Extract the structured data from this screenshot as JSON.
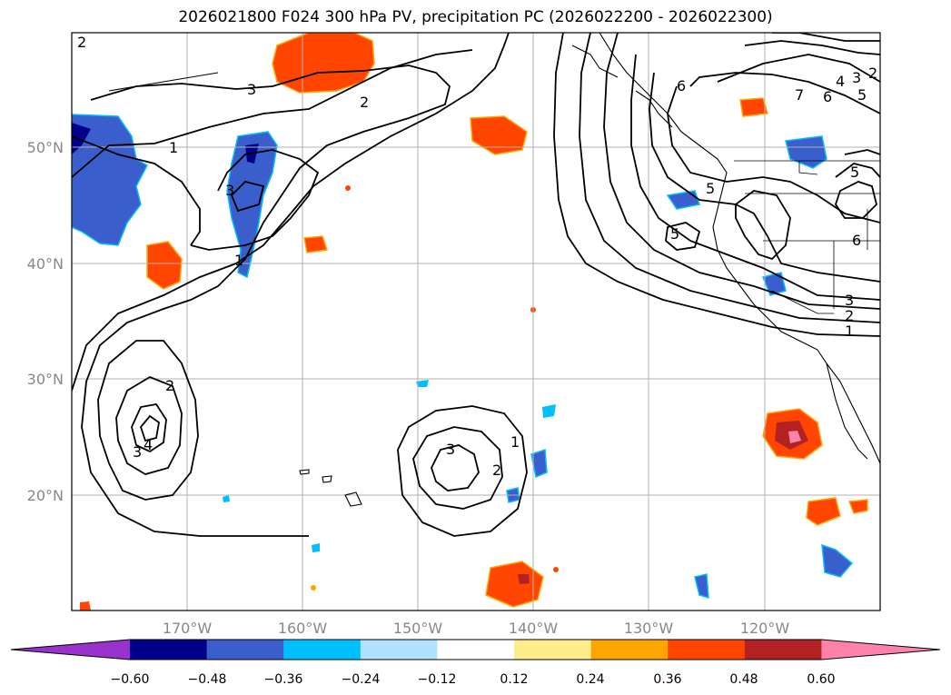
{
  "title": "2026021800 F024 300 hPa PV, precipitation PC (2026022200 - 2026022300)",
  "lat_labels": [
    "50°N",
    "40°N",
    "30°N",
    "20°N"
  ],
  "lon_labels": [
    "170°W",
    "160°W",
    "150°W",
    "140°W",
    "130°W",
    "120°W"
  ],
  "colorbar": {
    "ticks": [
      "−0.60",
      "−0.48",
      "−0.36",
      "−0.24",
      "−0.12",
      "0.12",
      "0.24",
      "0.36",
      "0.48",
      "0.60"
    ],
    "colors": [
      "#9932cc",
      "#00008b",
      "#3a5fcd",
      "#00bfff",
      "#b0e2ff",
      "#ffffff",
      "#ffec8b",
      "#ffa500",
      "#ff4500",
      "#b22222",
      "#ff82ab"
    ]
  },
  "contour_labels": [
    "2",
    "1",
    "3",
    "2",
    "1",
    "3",
    "6",
    "7",
    "6",
    "4",
    "3",
    "2",
    "5",
    "5",
    "5",
    "6",
    "5",
    "3",
    "2",
    "1",
    "2",
    "3",
    "4",
    "1",
    "2",
    "3"
  ]
}
